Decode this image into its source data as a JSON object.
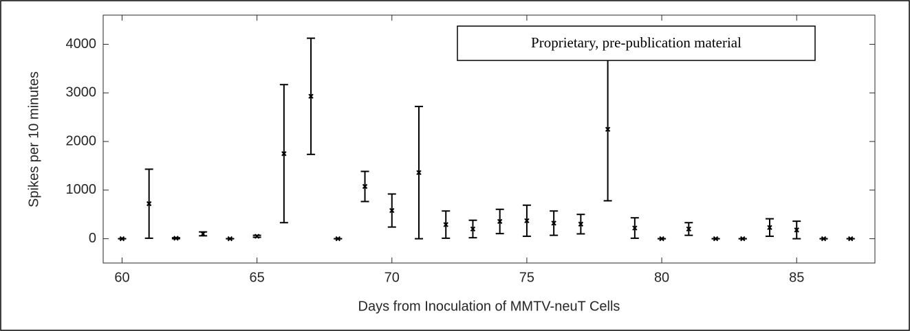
{
  "chart_data": {
    "type": "errorbar",
    "xlabel": "Days from Inoculation of MMTV-neuT Cells",
    "ylabel": "Spikes per 10 minutes",
    "annotation": "Proprietary, pre-publication material",
    "color": "#000000",
    "x": [
      60,
      61,
      62,
      63,
      64,
      65,
      66,
      67,
      68,
      69,
      70,
      71,
      72,
      73,
      74,
      75,
      76,
      77,
      78,
      79,
      80,
      81,
      82,
      83,
      84,
      85,
      86,
      87
    ],
    "values": [
      0,
      720,
      10,
      100,
      0,
      50,
      1750,
      2930,
      0,
      1075,
      580,
      1360,
      290,
      200,
      355,
      370,
      320,
      300,
      2250,
      220,
      0,
      200,
      0,
      0,
      230,
      180,
      0,
      0
    ],
    "errors": [
      0,
      710,
      10,
      40,
      0,
      20,
      1420,
      1195,
      0,
      310,
      340,
      1360,
      280,
      180,
      250,
      320,
      250,
      200,
      1470,
      210,
      0,
      130,
      0,
      0,
      180,
      180,
      0,
      0
    ],
    "xlim": [
      59.3,
      87.9
    ],
    "ylim": [
      -500,
      4600
    ],
    "xticks": [
      60,
      65,
      70,
      75,
      80,
      85
    ],
    "yticks": [
      0,
      1000,
      2000,
      3000,
      4000
    ]
  }
}
